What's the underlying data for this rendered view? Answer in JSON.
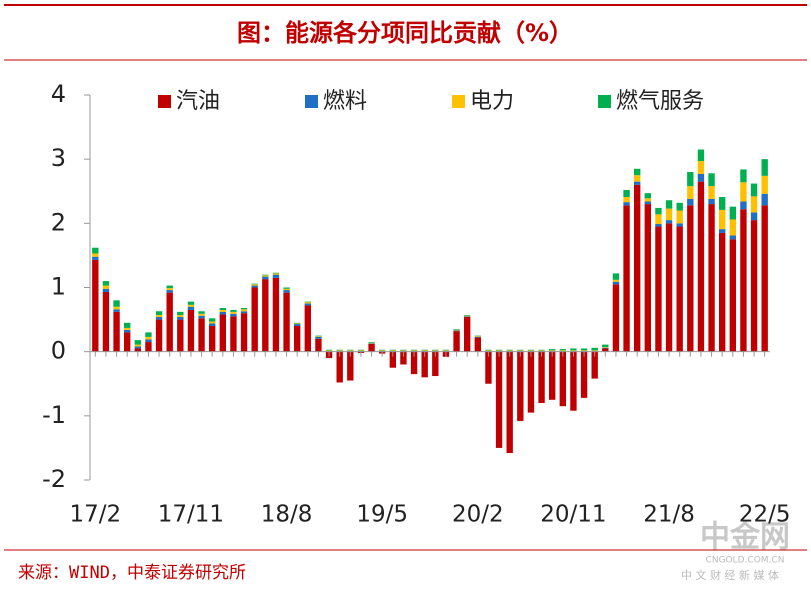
{
  "chart_data": {
    "type": "bar",
    "title": "图：能源各分项同比贡献（%）",
    "source": "来源：WIND，中泰证券研究所",
    "watermark": [
      "中金网",
      "CNGOLD.COM.CN",
      "中 文 财 经 新 媒 体"
    ],
    "stacked": true,
    "legend": "top",
    "categories": [
      "17/2",
      null,
      null,
      null,
      null,
      null,
      null,
      null,
      null,
      "17/11",
      null,
      null,
      null,
      null,
      null,
      null,
      null,
      null,
      "18/8",
      null,
      null,
      null,
      null,
      null,
      null,
      null,
      null,
      "19/5",
      null,
      null,
      null,
      null,
      null,
      null,
      null,
      null,
      "20/2",
      null,
      null,
      null,
      null,
      null,
      null,
      null,
      null,
      "20/11",
      null,
      null,
      null,
      null,
      null,
      null,
      null,
      null,
      "21/8",
      null,
      null,
      null,
      null,
      null,
      null,
      null,
      null,
      "22/5"
    ],
    "series": [
      {
        "name": "汽油",
        "color": "#c00000",
        "values": [
          1.43,
          0.93,
          0.62,
          0.3,
          0.05,
          0.15,
          0.5,
          0.92,
          0.5,
          0.65,
          0.52,
          0.4,
          0.58,
          0.55,
          0.6,
          1.0,
          1.13,
          1.15,
          0.92,
          0.4,
          0.72,
          0.2,
          -0.1,
          -0.48,
          -0.45,
          -0.02,
          0.12,
          -0.03,
          -0.25,
          -0.2,
          -0.35,
          -0.4,
          -0.38,
          -0.08,
          0.32,
          0.54,
          0.22,
          -0.5,
          -1.5,
          -1.58,
          -1.08,
          -0.95,
          -0.8,
          -0.75,
          -0.85,
          -0.92,
          -0.72,
          -0.42,
          0.05,
          1.05,
          2.28,
          2.6,
          2.3,
          1.95,
          2.0,
          1.95,
          2.28,
          2.65,
          2.3,
          1.85,
          1.75,
          2.22,
          2.05,
          2.28
        ]
      },
      {
        "name": "燃料",
        "color": "#1f6fc5",
        "values": [
          0.05,
          0.05,
          0.04,
          0.04,
          0.03,
          0.04,
          0.04,
          0.04,
          0.04,
          0.05,
          0.04,
          0.04,
          0.04,
          0.04,
          0.03,
          0.03,
          0.04,
          0.05,
          0.04,
          0.03,
          0.03,
          0.03,
          0.01,
          0.01,
          0.01,
          0.01,
          0.01,
          0.01,
          0.01,
          0.01,
          0.01,
          0.01,
          0.01,
          0.01,
          0.01,
          0.01,
          0.01,
          0.01,
          0.01,
          0.01,
          0.01,
          0.01,
          0.01,
          0.01,
          0.01,
          0.01,
          0.01,
          0.01,
          0.01,
          0.04,
          0.05,
          0.05,
          0.04,
          0.04,
          0.05,
          0.05,
          0.1,
          0.12,
          0.08,
          0.06,
          0.06,
          0.12,
          0.12,
          0.18
        ]
      },
      {
        "name": "电力",
        "color": "#ffc000",
        "values": [
          0.05,
          0.05,
          0.04,
          0.03,
          0.03,
          0.04,
          0.03,
          0.03,
          0.03,
          0.03,
          0.03,
          0.03,
          0.03,
          0.03,
          0.03,
          0.02,
          0.02,
          0.02,
          0.02,
          0.01,
          0.02,
          0.01,
          0.01,
          0.01,
          0.01,
          0.01,
          0.01,
          0.01,
          0.01,
          0.01,
          0.01,
          0.01,
          0.01,
          0.01,
          0.01,
          0.01,
          0.01,
          0.01,
          0.01,
          0.01,
          0.01,
          0.01,
          0.01,
          0.01,
          0.01,
          0.01,
          0.01,
          0.01,
          0.01,
          0.03,
          0.08,
          0.1,
          0.05,
          0.15,
          0.18,
          0.2,
          0.2,
          0.2,
          0.2,
          0.3,
          0.25,
          0.3,
          0.25,
          0.28
        ]
      },
      {
        "name": "燃气服务",
        "color": "#00b050",
        "values": [
          0.09,
          0.07,
          0.1,
          0.08,
          0.07,
          0.07,
          0.06,
          0.04,
          0.05,
          0.05,
          0.04,
          0.05,
          0.03,
          0.03,
          0.02,
          0.01,
          0.01,
          0.01,
          0.02,
          0.01,
          0.01,
          0.01,
          0.01,
          0.01,
          0.01,
          0.01,
          0.01,
          0.01,
          0.01,
          0.01,
          0.01,
          0.01,
          0.01,
          0.01,
          0.01,
          0.01,
          0.01,
          0.01,
          0.01,
          0.01,
          0.01,
          0.01,
          0.01,
          0.02,
          0.02,
          0.03,
          0.03,
          0.04,
          0.04,
          0.1,
          0.11,
          0.1,
          0.08,
          0.1,
          0.13,
          0.12,
          0.22,
          0.18,
          0.2,
          0.2,
          0.2,
          0.2,
          0.2,
          0.26
        ]
      }
    ],
    "ylim": [
      -2,
      4
    ],
    "yticks": [
      -2,
      -1,
      0,
      1,
      2,
      3,
      4
    ]
  }
}
